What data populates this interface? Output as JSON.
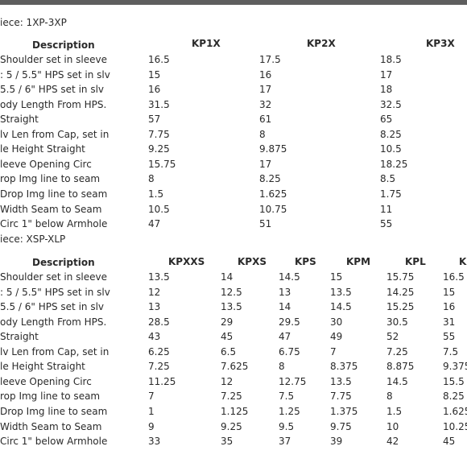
{
  "table1": {
    "piece_label": "iece: 1XP-3XP",
    "description_header": "Description",
    "size_headers": [
      "KP1X",
      "KP2X",
      "KP3X"
    ],
    "rows": [
      {
        "label": "Shoulder set in sleeve",
        "values": [
          "16.5",
          "17.5",
          "18.5"
        ]
      },
      {
        "label": ": 5 / 5.5\" HPS set in slv",
        "values": [
          "15",
          "16",
          "17"
        ]
      },
      {
        "label": "5.5 / 6\" HPS set in slv",
        "values": [
          "16",
          "17",
          "18"
        ]
      },
      {
        "label": "ody Length From HPS.",
        "values": [
          "31.5",
          "32",
          "32.5"
        ]
      },
      {
        "label": "Straight",
        "values": [
          "57",
          "61",
          "65"
        ]
      },
      {
        "label": "lv Len from Cap, set in",
        "values": [
          "7.75",
          "8",
          "8.25"
        ]
      },
      {
        "label": "le Height Straight",
        "values": [
          "9.25",
          "9.875",
          "10.5"
        ]
      },
      {
        "label": "leeve Opening Circ",
        "values": [
          "15.75",
          "17",
          "18.25"
        ]
      },
      {
        "label": "rop Img line to seam",
        "values": [
          "8",
          "8.25",
          "8.5"
        ]
      },
      {
        "label": "Drop Img line to seam",
        "values": [
          "1.5",
          "1.625",
          "1.75"
        ]
      },
      {
        "label": "Width Seam to Seam",
        "values": [
          "10.5",
          "10.75",
          "11"
        ]
      },
      {
        "label": "Circ 1\" below Armhole",
        "values": [
          "47",
          "51",
          "55"
        ]
      }
    ]
  },
  "table2": {
    "piece_label": "iece: XSP-XLP",
    "description_header": "Description",
    "size_headers": [
      "KPXXS",
      "KPXS",
      "KPS",
      "KPM",
      "KPL",
      "K"
    ],
    "rows": [
      {
        "label": "Shoulder set in sleeve",
        "values": [
          "13.5",
          "14",
          "14.5",
          "15",
          "15.75",
          "16.5"
        ]
      },
      {
        "label": ": 5 / 5.5\" HPS set in slv",
        "values": [
          "12",
          "12.5",
          "13",
          "13.5",
          "14.25",
          "15"
        ]
      },
      {
        "label": "5.5 / 6\" HPS set in slv",
        "values": [
          "13",
          "13.5",
          "14",
          "14.5",
          "15.25",
          "16"
        ]
      },
      {
        "label": "ody Length From HPS.",
        "values": [
          "28.5",
          "29",
          "29.5",
          "30",
          "30.5",
          "31"
        ]
      },
      {
        "label": "Straight",
        "values": [
          "43",
          "45",
          "47",
          "49",
          "52",
          "55"
        ]
      },
      {
        "label": "lv Len from Cap, set in",
        "values": [
          "6.25",
          "6.5",
          "6.75",
          "7",
          "7.25",
          "7.5"
        ]
      },
      {
        "label": "le Height Straight",
        "values": [
          "7.25",
          "7.625",
          "8",
          "8.375",
          "8.875",
          "9.375"
        ]
      },
      {
        "label": "leeve Opening Circ",
        "values": [
          "11.25",
          "12",
          "12.75",
          "13.5",
          "14.5",
          "15.5"
        ]
      },
      {
        "label": "rop Img line to seam",
        "values": [
          "7",
          "7.25",
          "7.5",
          "7.75",
          "8",
          "8.25"
        ]
      },
      {
        "label": "Drop Img line to seam",
        "values": [
          "1",
          "1.125",
          "1.25",
          "1.375",
          "1.5",
          "1.625"
        ]
      },
      {
        "label": "Width Seam to Seam",
        "values": [
          "9",
          "9.25",
          "9.5",
          "9.75",
          "10",
          "10.25"
        ]
      },
      {
        "label": "Circ 1\" below Armhole",
        "values": [
          "33",
          "35",
          "37",
          "39",
          "42",
          "45"
        ]
      }
    ]
  }
}
